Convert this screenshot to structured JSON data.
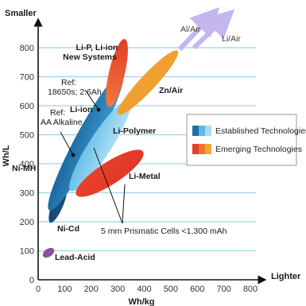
{
  "chart_data": {
    "type": "scatter",
    "xlabel": "Wh/kg",
    "ylabel": "Wh/L",
    "x_end_label": "Lighter",
    "y_end_label": "Smaller",
    "xlim": [
      0,
      800
    ],
    "ylim": [
      0,
      850
    ],
    "x_ticks": [
      "0",
      "100",
      "200",
      "300",
      "400",
      "500",
      "600",
      "700",
      "800"
    ],
    "y_ticks": [
      "0",
      "100",
      "200",
      "300",
      "400",
      "500",
      "600",
      "700",
      "800"
    ],
    "grid": "horizontal",
    "legend_position": "right",
    "legend": [
      {
        "label": "Established Technologies",
        "colors": [
          "#1d6fa5",
          "#5fb7e4",
          "#a9dcf3"
        ]
      },
      {
        "label": "Emerging Technologies",
        "colors": [
          "#e6402a",
          "#ef7431",
          "#f2a734"
        ]
      }
    ],
    "regions": [
      {
        "label": "Lead-Acid",
        "kind": "established",
        "x_range": [
          25,
          60
        ],
        "y_range": [
          50,
          105
        ],
        "color": "#8a4fa0"
      },
      {
        "label": "Ni-Cd",
        "kind": "established",
        "x_range": [
          40,
          90
        ],
        "y_range": [
          150,
          280
        ],
        "color": "#154d7a"
      },
      {
        "label": "Ni-MH",
        "kind": "established",
        "x_range": [
          55,
          130
        ],
        "y_range": [
          180,
          420
        ],
        "color": "#1f6ea6"
      },
      {
        "label": "Li-ion",
        "kind": "established",
        "x_range": [
          80,
          265
        ],
        "y_range": [
          200,
          680
        ],
        "color": "#2a88c2"
      },
      {
        "label": "Li-Polymer",
        "kind": "established",
        "x_range": [
          110,
          280
        ],
        "y_range": [
          270,
          560
        ],
        "color": "#86cdee"
      },
      {
        "label": "Li-P, Li-ion New Systems",
        "kind": "emerging",
        "x_range": [
          260,
          320
        ],
        "y_range": [
          530,
          830
        ],
        "color": "#e6402a"
      },
      {
        "label": "Zn/Air",
        "kind": "emerging",
        "x_range": [
          310,
          520
        ],
        "y_range": [
          510,
          820
        ],
        "color": "#f0a02f"
      },
      {
        "label": "Li-Metal",
        "kind": "emerging",
        "x_range": [
          150,
          400
        ],
        "y_range": [
          260,
          470
        ],
        "color": "#e6402a"
      },
      {
        "label": "Al/Air",
        "kind": "emerging",
        "direction": "off-scale, upper right",
        "color": "#b9a7e8"
      },
      {
        "label": "Li/Air",
        "kind": "emerging",
        "direction": "off-scale, upper right",
        "color": "#b9a7e8"
      }
    ],
    "annotations": [
      {
        "text": [
          "Ref:",
          "18650s; 2.6Ah"
        ],
        "point": [
          235,
          590
        ]
      },
      {
        "text": [
          "Ref:",
          "AA Alkaline"
        ],
        "point": [
          135,
          420
        ]
      },
      {
        "text": [
          "5 mm Prismatic Cells <1,300 mAh"
        ],
        "points": [
          [
            145,
            460
          ],
          [
            205,
            350
          ]
        ]
      }
    ]
  }
}
